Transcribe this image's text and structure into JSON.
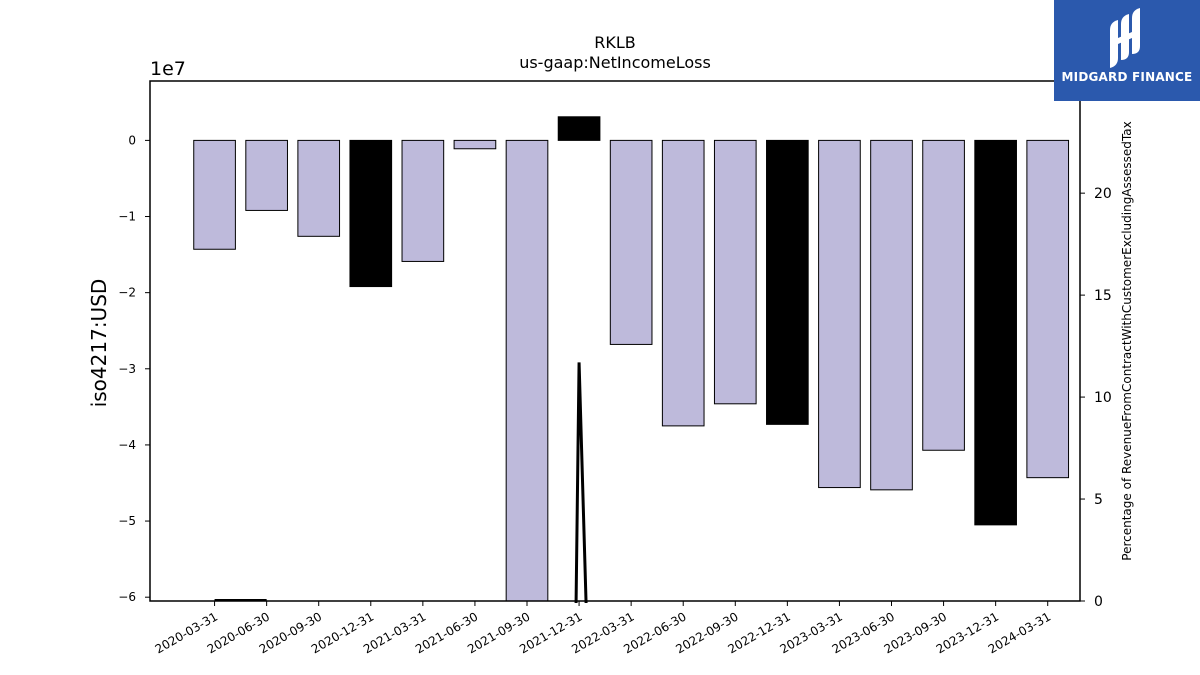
{
  "chart_data": {
    "type": "bar",
    "title": "RKLB",
    "subtitle": "us-gaap:NetIncomeLoss",
    "ylabel": "iso4217:USD",
    "y2label": "Percentage of RevenueFromContractWithCustomerExcludingAssessedTax",
    "y_multiplier_label": "1e7",
    "categories": [
      "2020-03-31",
      "2020-06-30",
      "2020-09-30",
      "2020-12-31",
      "2021-03-31",
      "2021-06-30",
      "2021-09-30",
      "2021-12-31",
      "2022-03-31",
      "2022-06-30",
      "2022-09-30",
      "2022-12-31",
      "2023-03-31",
      "2023-06-30",
      "2023-09-30",
      "2023-12-31",
      "2024-03-31"
    ],
    "series": [
      {
        "values": [
          -1.43,
          -0.92,
          -1.26,
          -1.92,
          -1.59,
          -0.11,
          -6.05,
          0.31,
          -2.68,
          -3.75,
          -3.46,
          -3.73,
          -4.56,
          -4.59,
          -4.07,
          -5.05,
          -4.43
        ],
        "annual_highlight": [
          false,
          false,
          false,
          true,
          false,
          false,
          false,
          true,
          false,
          false,
          false,
          true,
          false,
          false,
          false,
          true,
          false
        ]
      },
      {
        "type": "line",
        "axis": "right",
        "values": [
          0.05,
          0.05,
          null,
          null,
          null,
          null,
          null,
          11.7,
          null,
          null,
          null,
          null,
          null,
          null,
          null,
          null,
          null
        ],
        "line_drop_to": 0
      }
    ],
    "ylim": [
      -6.05,
      0.78
    ],
    "y_ticks": [
      0,
      -1,
      -2,
      -3,
      -4,
      -5,
      -6
    ],
    "y2lim": [
      0,
      25.5
    ],
    "y2_ticks": [
      0,
      5,
      10,
      15,
      20
    ],
    "colors": {
      "bar": "#bebadb",
      "bar_highlight": "#000000",
      "line": "#000000"
    },
    "grid": false
  },
  "logo": {
    "text": "MIDGARD FINANCE"
  }
}
